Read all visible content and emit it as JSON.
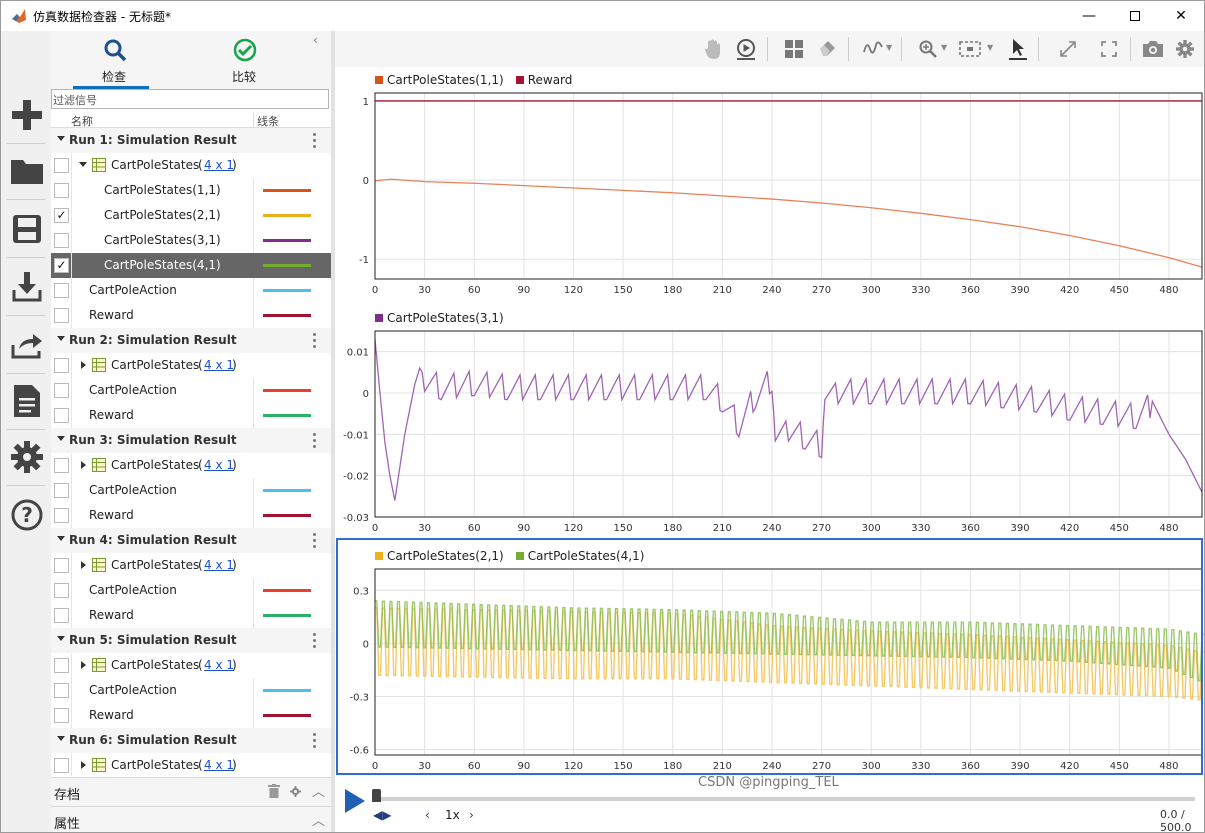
{
  "window": {
    "title": "仿真数据检查器 - 无标题*"
  },
  "tabs": [
    {
      "label": "检查"
    },
    {
      "label": "比较"
    }
  ],
  "filter": {
    "placeholder": "过滤信号"
  },
  "columns": {
    "name": "名称",
    "line": "线条"
  },
  "runs": [
    {
      "label": "Run 1: Simulation Result",
      "group": "CartPoleStates",
      "dims": "4 x 1",
      "expanded": true,
      "signals": [
        {
          "name": "CartPoleStates(1,1)",
          "color": "#d95319",
          "checked": false,
          "indent": true
        },
        {
          "name": "CartPoleStates(2,1)",
          "color": "#edb120",
          "checked": true,
          "indent": true
        },
        {
          "name": "CartPoleStates(3,1)",
          "color": "#7e2f8e",
          "checked": false,
          "indent": true
        },
        {
          "name": "CartPoleStates(4,1)",
          "color": "#77ac30",
          "checked": true,
          "indent": true,
          "selected": true
        },
        {
          "name": "CartPoleAction",
          "color": "#4dbeee",
          "checked": false,
          "indent": false
        },
        {
          "name": "Reward",
          "color": "#a2142f",
          "checked": false,
          "indent": false
        }
      ]
    },
    {
      "label": "Run 2: Simulation Result",
      "group": "CartPoleStates",
      "dims": "4 x 1",
      "expanded": false,
      "signals": [
        {
          "name": "CartPoleAction",
          "color": "#e8402a",
          "checked": false,
          "indent": false
        },
        {
          "name": "Reward",
          "color": "#2bb06a",
          "checked": false,
          "indent": false
        }
      ]
    },
    {
      "label": "Run 3: Simulation Result",
      "group": "CartPoleStates",
      "dims": "4 x 1",
      "expanded": false,
      "signals": [
        {
          "name": "CartPoleAction",
          "color": "#4dbeee",
          "checked": false,
          "indent": false
        },
        {
          "name": "Reward",
          "color": "#a2142f",
          "checked": false,
          "indent": false
        }
      ]
    },
    {
      "label": "Run 4: Simulation Result",
      "group": "CartPoleStates",
      "dims": "4 x 1",
      "expanded": false,
      "signals": [
        {
          "name": "CartPoleAction",
          "color": "#e8402a",
          "checked": false,
          "indent": false
        },
        {
          "name": "Reward",
          "color": "#2bb06a",
          "checked": false,
          "indent": false
        }
      ]
    },
    {
      "label": "Run 5: Simulation Result",
      "group": "CartPoleStates",
      "dims": "4 x 1",
      "expanded": false,
      "signals": [
        {
          "name": "CartPoleAction",
          "color": "#4dbeee",
          "checked": false,
          "indent": false
        },
        {
          "name": "Reward",
          "color": "#a2142f",
          "checked": false,
          "indent": false
        }
      ]
    },
    {
      "label": "Run 6: Simulation Result",
      "group": "CartPoleStates",
      "dims": "4 x 1",
      "expanded": false,
      "signals": []
    }
  ],
  "bottom": {
    "archive": "存档",
    "properties": "属性"
  },
  "playback": {
    "speed": "1x",
    "time": "0.0 / 500.0"
  },
  "watermark": "CSDN @pingping_TEL",
  "chart_data": [
    {
      "type": "line",
      "legend": [
        {
          "name": "CartPoleStates(1,1)",
          "color": "#d95319"
        },
        {
          "name": "Reward",
          "color": "#a2142f"
        }
      ],
      "xlim": [
        0,
        500
      ],
      "ylim": [
        -1.25,
        1.1
      ],
      "xticks": [
        0,
        30,
        60,
        90,
        120,
        150,
        180,
        210,
        240,
        270,
        300,
        330,
        360,
        390,
        420,
        450,
        480
      ],
      "yticks": [
        {
          "v": 1,
          "label": "1"
        },
        {
          "v": 0,
          "label": "0"
        },
        {
          "v": -1,
          "label": "-1"
        }
      ],
      "series": [
        {
          "name": "Reward",
          "color": "#a2142f",
          "x": [
            0,
            500
          ],
          "y": [
            1,
            1
          ]
        },
        {
          "name": "CartPoleStates(1,1)",
          "color": "#e8825a",
          "x": [
            0,
            10,
            30,
            60,
            90,
            120,
            150,
            180,
            210,
            240,
            270,
            300,
            330,
            360,
            390,
            420,
            450,
            480,
            500
          ],
          "y": [
            -0.01,
            0.01,
            -0.02,
            -0.04,
            -0.07,
            -0.1,
            -0.13,
            -0.16,
            -0.2,
            -0.24,
            -0.29,
            -0.35,
            -0.42,
            -0.5,
            -0.59,
            -0.7,
            -0.83,
            -0.98,
            -1.1
          ]
        }
      ]
    },
    {
      "type": "line",
      "legend": [
        {
          "name": "CartPoleStates(3,1)",
          "color": "#7e2f8e"
        }
      ],
      "xlim": [
        0,
        500
      ],
      "ylim": [
        -0.03,
        0.015
      ],
      "xticks": [
        0,
        30,
        60,
        90,
        120,
        150,
        180,
        210,
        240,
        270,
        300,
        330,
        360,
        390,
        420,
        450,
        480
      ],
      "yticks": [
        {
          "v": 0.01,
          "label": "0.01"
        },
        {
          "v": 0,
          "label": "0"
        },
        {
          "v": -0.01,
          "label": "-0.01"
        },
        {
          "v": -0.02,
          "label": "-0.02"
        },
        {
          "v": -0.03,
          "label": "-0.03"
        }
      ],
      "series": [
        {
          "name": "CartPoleStates(3,1)",
          "color": "#a064b4",
          "x": [
            0,
            3,
            6,
            9,
            12,
            15,
            18,
            21,
            24,
            27,
            30,
            40,
            60,
            80,
            100,
            120,
            140,
            160,
            180,
            200,
            210,
            220,
            230,
            240,
            242,
            250,
            260,
            270,
            272,
            280,
            300,
            320,
            340,
            360,
            380,
            400,
            420,
            440,
            460,
            470,
            480,
            490,
            500
          ],
          "y": [
            0.013,
            0.0,
            -0.012,
            -0.02,
            -0.026,
            -0.018,
            -0.01,
            -0.004,
            0.002,
            0.006,
            0.004,
            0.002,
            0.003,
            0.002,
            0.002,
            0.002,
            0.002,
            0.002,
            0.002,
            0.002,
            -0.001,
            -0.007,
            0.0,
            0.004,
            -0.008,
            -0.008,
            -0.01,
            -0.012,
            0.002,
            0.001,
            0.001,
            0.001,
            0.001,
            0.001,
            0.0,
            -0.001,
            -0.003,
            -0.004,
            -0.005,
            -0.002,
            -0.01,
            -0.016,
            -0.024
          ]
        }
      ]
    },
    {
      "type": "line",
      "legend": [
        {
          "name": "CartPoleStates(2,1)",
          "color": "#edb120"
        },
        {
          "name": "CartPoleStates(4,1)",
          "color": "#77ac30"
        }
      ],
      "xlim": [
        0,
        500
      ],
      "ylim": [
        -0.63,
        0.42
      ],
      "xticks": [
        0,
        30,
        60,
        90,
        120,
        150,
        180,
        210,
        240,
        270,
        300,
        330,
        360,
        390,
        420,
        450,
        480
      ],
      "yticks": [
        {
          "v": 0.3,
          "label": "0.3"
        },
        {
          "v": 0,
          "label": "0"
        },
        {
          "v": -0.3,
          "label": "-0.3"
        },
        {
          "v": -0.6,
          "label": "-0.6"
        }
      ],
      "series": [
        {
          "name": "CartPoleStates(2,1)",
          "color": "#f2c14e",
          "x": [
            0,
            60,
            120,
            180,
            240,
            300,
            360,
            420,
            480,
            500
          ],
          "ymax": [
            0.2,
            0.19,
            0.18,
            0.17,
            0.1,
            0.07,
            0.05,
            0.02,
            -0.01,
            -0.05
          ],
          "ymin": [
            -0.18,
            -0.19,
            -0.2,
            -0.2,
            -0.22,
            -0.24,
            -0.26,
            -0.28,
            -0.3,
            -0.32
          ]
        },
        {
          "name": "CartPoleStates(4,1)",
          "color": "#8cbe55",
          "x": [
            0,
            60,
            120,
            180,
            240,
            300,
            360,
            420,
            480,
            500
          ],
          "ymax": [
            0.24,
            0.22,
            0.2,
            0.19,
            0.17,
            0.12,
            0.12,
            0.1,
            0.08,
            0.05
          ],
          "ymin": [
            -0.02,
            -0.03,
            -0.04,
            -0.05,
            -0.06,
            -0.07,
            -0.08,
            -0.1,
            -0.14,
            -0.22
          ]
        }
      ]
    }
  ]
}
